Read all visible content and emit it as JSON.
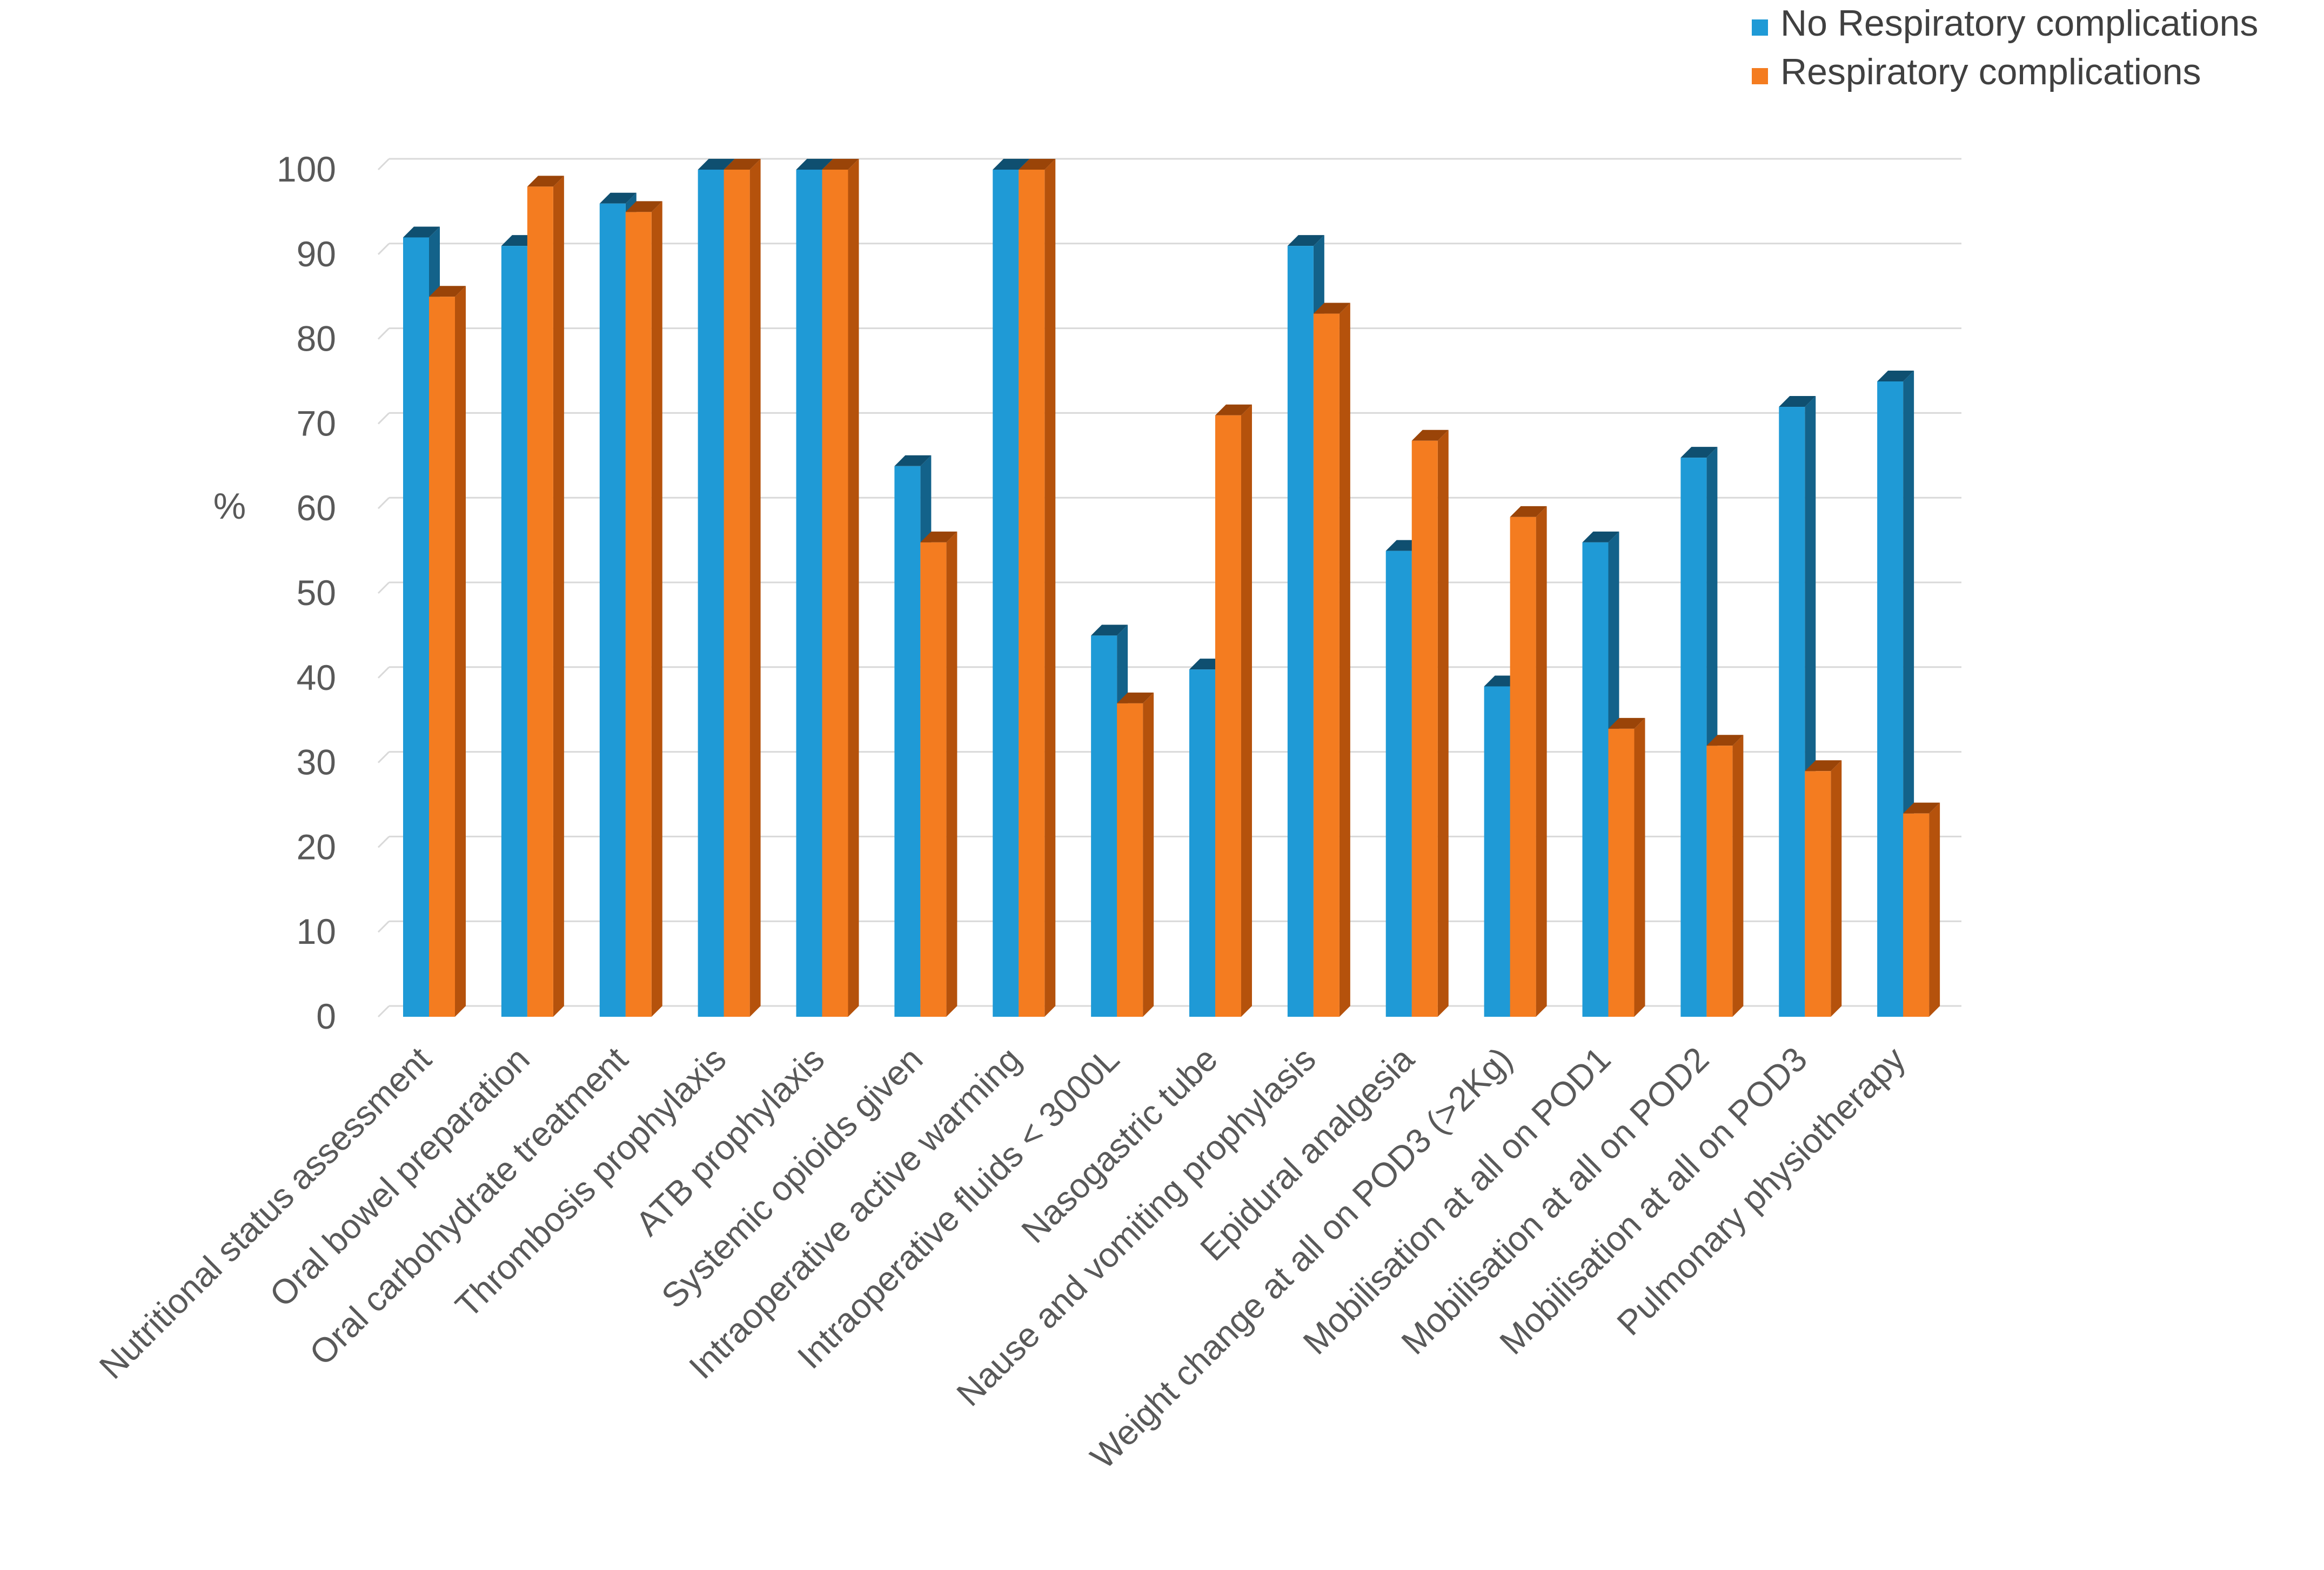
{
  "chart_data": {
    "type": "bar",
    "title": "",
    "xlabel": "",
    "ylabel": "%",
    "ylim": [
      0,
      100
    ],
    "yticks": [
      0,
      10,
      20,
      30,
      40,
      50,
      60,
      70,
      80,
      90,
      100
    ],
    "grid": true,
    "legend_position": "top-right",
    "categories": [
      "Nutritional status assessment",
      "Oral bowel preparation",
      "Oral carbohydrate treatment",
      "Thrombosis prophylaxis",
      "ATB prophylaxis",
      "Systemic opioids given",
      "Intraoperative active warming",
      "Intraoperative fluids < 3000L",
      "Nasogastric tube",
      "Nause and vomiting prophylasis",
      "Epidural analgesia",
      "Weight change at all on POD3 (>2Kg)",
      "Mobilisation at all on POD1",
      "Mobilisation at all on POD2",
      "Mobilisation at all on POD3",
      "Pulmonary physiotherapy"
    ],
    "series": [
      {
        "name": "No Respiratory complications",
        "color": "#1F9AD6",
        "side_color": "#13628A",
        "top_color": "#0F4F70",
        "values": [
          92,
          91,
          96,
          100,
          100,
          65,
          100,
          45,
          41,
          91,
          55,
          39,
          56,
          66,
          72,
          75
        ]
      },
      {
        "name": "Respiratory complications",
        "color": "#F47C20",
        "side_color": "#B5520C",
        "top_color": "#9A4408",
        "values": [
          85,
          98,
          95,
          100,
          100,
          56,
          100,
          37,
          71,
          83,
          68,
          59,
          34,
          32,
          29,
          24
        ]
      }
    ]
  }
}
